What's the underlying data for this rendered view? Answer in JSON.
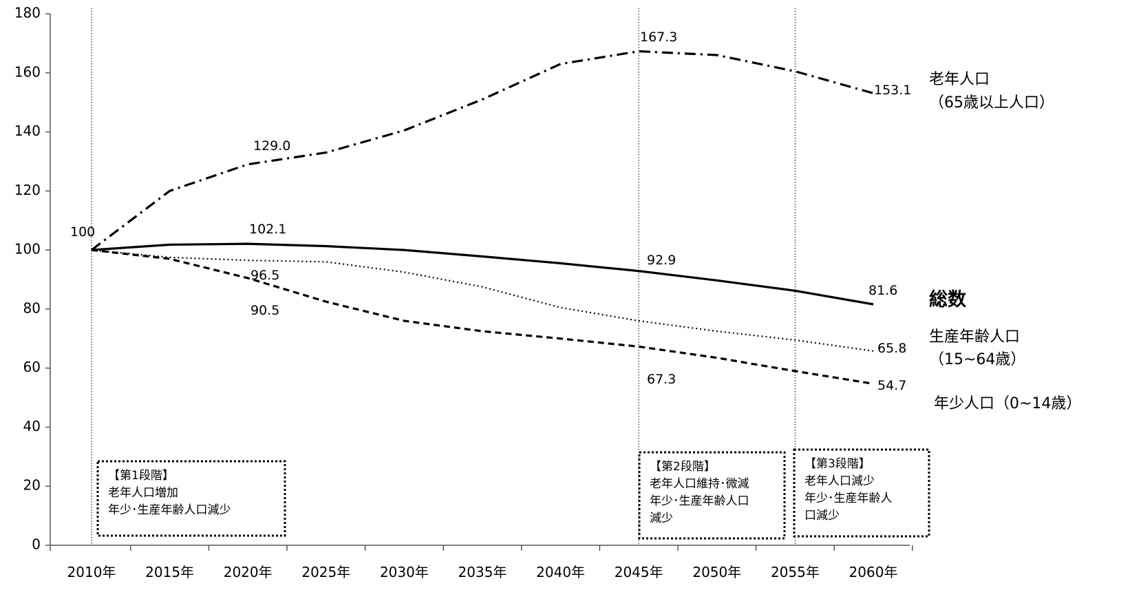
{
  "chart_data": {
    "type": "line",
    "categories": [
      "2010年",
      "2015年",
      "2020年",
      "2025年",
      "2030年",
      "2035年",
      "2040年",
      "2045年",
      "2050年",
      "2055年",
      "2060年"
    ],
    "ylim": [
      0,
      180
    ],
    "yticks": [
      0,
      20,
      40,
      60,
      80,
      100,
      120,
      140,
      160,
      180
    ],
    "grid": false,
    "series": [
      {
        "id": "elderly",
        "name_lines": [
          "老年人口",
          "（65歳以上人口）"
        ],
        "style": "dashdot",
        "values": [
          100,
          120,
          129.0,
          133,
          140.5,
          151,
          163,
          167.3,
          166,
          160.5,
          153.1
        ],
        "labels": [
          {
            "index": 0,
            "text": "100"
          },
          {
            "index": 2,
            "text": "129.0"
          },
          {
            "index": 7,
            "text": "167.3"
          },
          {
            "index": 10,
            "text": "153.1"
          }
        ]
      },
      {
        "id": "total",
        "name_lines": [
          "総数"
        ],
        "style": "solid",
        "values": [
          100,
          101.8,
          102.1,
          101.3,
          100,
          97.8,
          95.5,
          92.9,
          89.7,
          86.2,
          81.6
        ],
        "labels": [
          {
            "index": 2,
            "text": "102.1"
          },
          {
            "index": 7,
            "text": "92.9"
          },
          {
            "index": 10,
            "text": "81.6"
          }
        ]
      },
      {
        "id": "working",
        "name_lines": [
          "生産年齢人口",
          "（15~64歳）"
        ],
        "style": "dotted",
        "values": [
          100,
          97.5,
          96.5,
          96,
          92.5,
          87.5,
          80.5,
          76,
          72.5,
          69.5,
          65.8
        ],
        "labels": [
          {
            "index": 2,
            "text": "96.5"
          },
          {
            "index": 10,
            "text": "65.8"
          }
        ]
      },
      {
        "id": "young",
        "name_lines": [
          "年少人口（0~14歳）"
        ],
        "style": "dashed",
        "values": [
          100,
          97,
          90.5,
          82.5,
          76,
          72.5,
          70,
          67.3,
          63.5,
          59,
          54.7
        ],
        "labels": [
          {
            "index": 2,
            "text": "90.5"
          },
          {
            "index": 7,
            "text": "67.3"
          },
          {
            "index": 10,
            "text": "54.7"
          }
        ]
      }
    ],
    "stage_lines": [
      "2010年",
      "2045年",
      "2055年"
    ],
    "stages": [
      {
        "lines": [
          "【第1段階】",
          "老年人口増加",
          "年少･生産年齢人口減少"
        ]
      },
      {
        "lines": [
          "【第2段階】",
          "老年人口維持･微減",
          "年少･生産年齢人口",
          "減少"
        ]
      },
      {
        "lines": [
          "【第3段階】",
          "老年人口減少",
          "年少･生産年齢人",
          "口減少"
        ]
      }
    ]
  }
}
